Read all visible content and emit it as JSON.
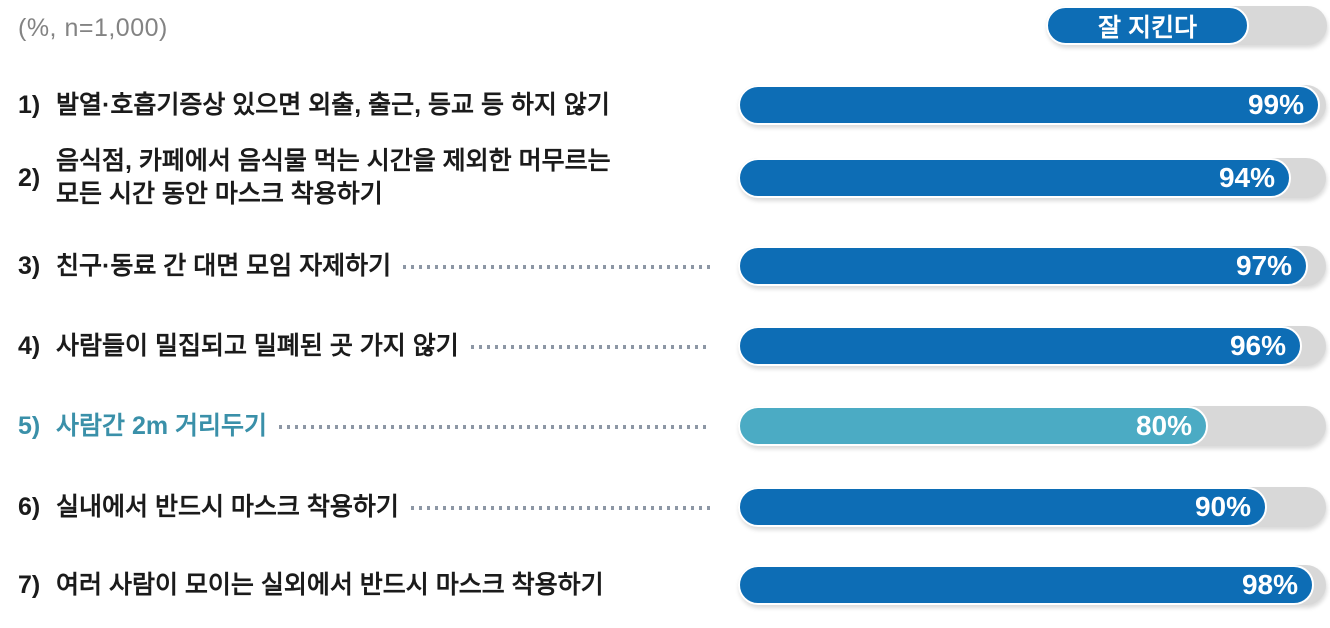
{
  "header": {
    "note": "(%, n=1,000)"
  },
  "legend": {
    "label": "잘 지킨다"
  },
  "colors": {
    "bar_blue": "#0d6db5",
    "bar_teal": "#4babc4",
    "highlight_text_teal": "#3a90a9",
    "track_gray": "#d8d8d8",
    "leader_dot_gray": "#8d97a5",
    "label_text": "#1b1b1b",
    "note_gray": "#838383",
    "value_text": "#ffffff"
  },
  "chart_data": {
    "type": "bar",
    "title": "",
    "unit": "%",
    "sample_note": "(%, n=1,000)",
    "legend": "잘 지킨다",
    "legend_position": "top-right",
    "orientation": "horizontal",
    "xlim": [
      0,
      100
    ],
    "grid": false,
    "categories": [
      "1) 발열·호흡기증상 있으면 외출, 출근, 등교 등 하지 않기",
      "2) 음식점, 카페에서 음식물 먹는 시간을 제외한 머무르는 모든 시간 동안 마스크 착용하기",
      "3) 친구·동료 간 대면 모임 자제하기",
      "4) 사람들이 밀집되고 밀폐된 곳 가지 않기",
      "5) 사람간 2m 거리두기",
      "6) 실내에서 반드시 마스크 착용하기",
      "7) 여러 사람이 모이는 실외에서 반드시 마스크 착용하기"
    ],
    "values": [
      99,
      94,
      97,
      96,
      80,
      90,
      98
    ],
    "rows": [
      {
        "num": "1)",
        "label": "발열·호흡기증상 있으면 외출, 출근, 등교 등 하지 않기",
        "value": 99,
        "display": "99%",
        "highlight": false,
        "leader": false
      },
      {
        "num": "2)",
        "label": "음식점, 카페에서 음식물 먹는 시간을 제외한 머무르는\n모든 시간 동안 마스크 착용하기",
        "value": 94,
        "display": "94%",
        "highlight": false,
        "leader": false
      },
      {
        "num": "3)",
        "label": "친구·동료 간 대면 모임 자제하기",
        "value": 97,
        "display": "97%",
        "highlight": false,
        "leader": true
      },
      {
        "num": "4)",
        "label": "사람들이 밀집되고 밀폐된 곳 가지 않기",
        "value": 96,
        "display": "96%",
        "highlight": false,
        "leader": true
      },
      {
        "num": "5)",
        "label": "사람간 2m 거리두기",
        "value": 80,
        "display": "80%",
        "highlight": true,
        "leader": true
      },
      {
        "num": "6)",
        "label": "실내에서 반드시 마스크 착용하기",
        "value": 90,
        "display": "90%",
        "highlight": false,
        "leader": true
      },
      {
        "num": "7)",
        "label": "여러 사람이 모이는 실외에서 반드시 마스크 착용하기",
        "value": 98,
        "display": "98%",
        "highlight": false,
        "leader": false
      }
    ]
  }
}
